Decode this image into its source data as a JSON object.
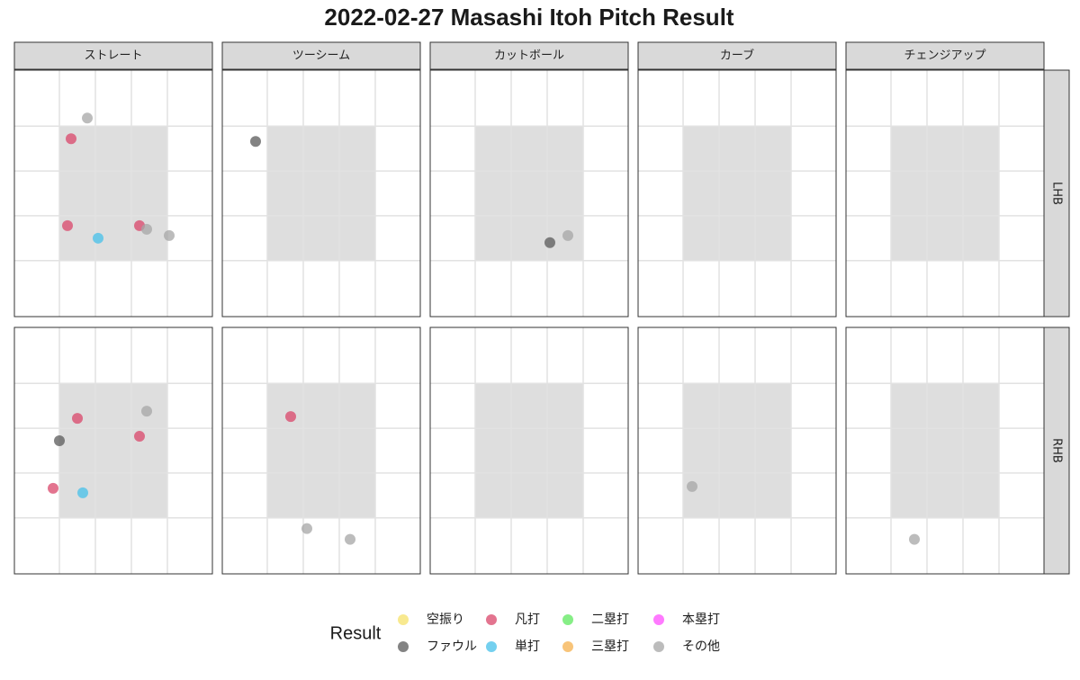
{
  "chart_data": {
    "type": "scatter",
    "title": "2022-02-27 Masashi Itoh Pitch Result",
    "columns": [
      "ストレート",
      "ツーシーム",
      "カットボール",
      "カーブ",
      "チェンジアップ"
    ],
    "rows": [
      "LHB",
      "RHB"
    ],
    "legend_title": "Result",
    "xlim": [
      -2.75,
      2.75
    ],
    "ylim": [
      -2.75,
      2.75
    ],
    "xticks": [
      -1.5,
      -0.5,
      0.5,
      1.5
    ],
    "yticks": [
      -1.5,
      -0.5,
      0.5,
      1.5
    ],
    "grid": true,
    "series": [
      {
        "name": "空振り",
        "color": "#f5e26a",
        "pitch": [],
        "batter": [],
        "x": [],
        "y": []
      },
      {
        "name": "ファウル",
        "color": "#5a5a5a",
        "pitch": [
          "ツーシーム",
          "カットボール",
          "ストレート"
        ],
        "batter": [
          "LHB",
          "LHB",
          "RHB"
        ],
        "x": [
          -1.825,
          0.575,
          -1.5
        ],
        "y": [
          1.16,
          -1.1,
          0.22
        ]
      },
      {
        "name": "凡打",
        "color": "#d9466a",
        "pitch": [
          "ストレート",
          "ストレート",
          "ストレート",
          "ストレート",
          "ストレート",
          "ストレート",
          "ツーシーム"
        ],
        "batter": [
          "LHB",
          "LHB",
          "LHB",
          "RHB",
          "RHB",
          "RHB",
          "RHB"
        ],
        "x": [
          -1.175,
          -1.275,
          0.725,
          -1.0,
          0.725,
          -1.675,
          -0.85
        ],
        "y": [
          1.22,
          -0.72,
          -0.72,
          0.72,
          0.32,
          -0.84,
          0.76
        ]
      },
      {
        "name": "単打",
        "color": "#45c0ea",
        "pitch": [
          "ストレート",
          "ストレート"
        ],
        "batter": [
          "LHB",
          "RHB"
        ],
        "x": [
          -0.425,
          -0.85
        ],
        "y": [
          -1.0,
          -0.94
        ]
      },
      {
        "name": "二塁打",
        "color": "#5ee85e",
        "pitch": [],
        "batter": [],
        "x": [],
        "y": []
      },
      {
        "name": "三塁打",
        "color": "#f6b04c",
        "pitch": [],
        "batter": [],
        "x": [],
        "y": []
      },
      {
        "name": "本塁打",
        "color": "#ff4dff",
        "pitch": [],
        "batter": [],
        "x": [],
        "y": []
      },
      {
        "name": "その他",
        "color": "#a6a6a6",
        "pitch": [
          "ストレート",
          "ストレート",
          "ストレート",
          "カットボール",
          "ストレート",
          "ツーシーム",
          "ツーシーム",
          "カーブ",
          "チェンジアップ"
        ],
        "batter": [
          "LHB",
          "LHB",
          "LHB",
          "LHB",
          "RHB",
          "RHB",
          "RHB",
          "RHB",
          "RHB"
        ],
        "x": [
          -0.725,
          0.925,
          1.55,
          1.075,
          0.925,
          -0.4,
          0.8,
          -1.25,
          -0.85
        ],
        "y": [
          1.68,
          -0.8,
          -0.94,
          -0.94,
          0.88,
          -1.74,
          -1.98,
          -0.8,
          -1.98
        ]
      }
    ]
  }
}
